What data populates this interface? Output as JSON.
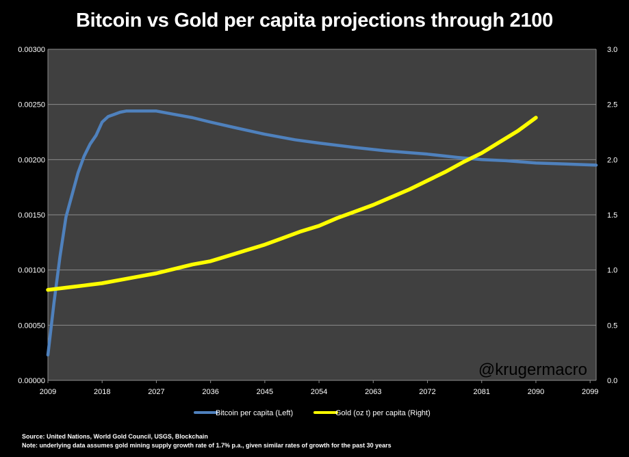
{
  "chart_data": {
    "type": "line",
    "title": "Bitcoin vs Gold per capita projections through 2100",
    "x_ticks": [
      "2009",
      "2018",
      "2027",
      "2036",
      "2045",
      "2054",
      "2063",
      "2072",
      "2081",
      "2090",
      "2099"
    ],
    "xlim": [
      2009,
      2100
    ],
    "y_left": {
      "range": [
        0,
        0.003
      ],
      "ticks": [
        "0.00000",
        "0.00050",
        "0.00100",
        "0.00150",
        "0.00200",
        "0.00250",
        "0.00300"
      ]
    },
    "y_right": {
      "range": [
        0,
        3.0
      ],
      "ticks": [
        "0.0",
        "0.5",
        "1.0",
        "1.5",
        "2.0",
        "2.5",
        "3.0"
      ]
    },
    "grid": true,
    "legend_position": "bottom",
    "series": [
      {
        "name": "Bitcoin per capita (Left)",
        "axis": "left",
        "color": "#4f81bd",
        "x": [
          2009,
          2010,
          2011,
          2012,
          2013,
          2014,
          2015,
          2016,
          2017,
          2018,
          2019,
          2020,
          2021,
          2022,
          2023,
          2024,
          2025,
          2026,
          2027,
          2030,
          2033,
          2036,
          2040,
          2045,
          2050,
          2054,
          2060,
          2065,
          2072,
          2077,
          2081,
          2085,
          2090,
          2095,
          2100
        ],
        "y": [
          0.00023,
          0.0007,
          0.00112,
          0.00148,
          0.00168,
          0.00188,
          0.00203,
          0.00214,
          0.00222,
          0.00234,
          0.00239,
          0.00241,
          0.00243,
          0.00244,
          0.00244,
          0.00244,
          0.00244,
          0.00244,
          0.00244,
          0.00241,
          0.00238,
          0.00234,
          0.00229,
          0.00223,
          0.00218,
          0.00215,
          0.00211,
          0.00208,
          0.00205,
          0.00202,
          0.002,
          0.00199,
          0.00197,
          0.00196,
          0.00195
        ]
      },
      {
        "name": "Gold (oz t) per capita (Right)",
        "axis": "right",
        "color": "#ffff00",
        "x": [
          2009,
          2012,
          2015,
          2018,
          2021,
          2024,
          2027,
          2030,
          2033,
          2036,
          2039,
          2042,
          2045,
          2048,
          2051,
          2054,
          2057,
          2060,
          2063,
          2066,
          2069,
          2072,
          2075,
          2078,
          2081,
          2084,
          2087,
          2090
        ],
        "y": [
          0.82,
          0.84,
          0.86,
          0.88,
          0.91,
          0.94,
          0.97,
          1.01,
          1.05,
          1.08,
          1.13,
          1.18,
          1.23,
          1.29,
          1.35,
          1.4,
          1.47,
          1.53,
          1.59,
          1.66,
          1.73,
          1.81,
          1.89,
          1.98,
          2.06,
          2.16,
          2.26,
          2.38
        ]
      }
    ]
  },
  "watermark": "@krugermacro",
  "source_note": "Source: United Nations, World Gold Council, USGS, Blockchain",
  "assumption_note": "Note: underlying data assumes gold mining supply growth rate of 1.7% p.a., given similar rates of growth for the past 30 years"
}
